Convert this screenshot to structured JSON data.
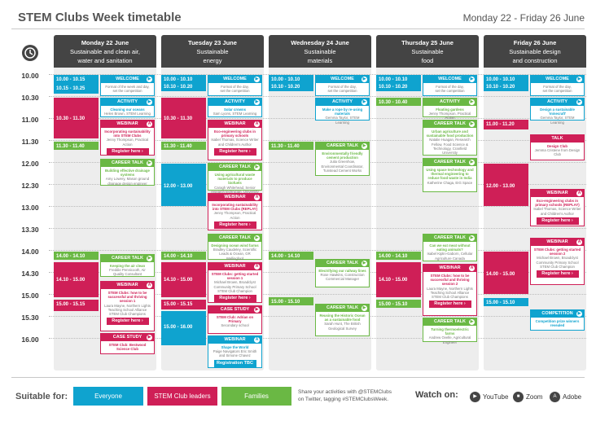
{
  "header": {
    "title": "STEM Clubs Week timetable",
    "dates": "Monday 22 - Friday 26 June"
  },
  "times": [
    "10.00",
    "10.30",
    "11.00",
    "11.30",
    "12.00",
    "12.30",
    "13.00",
    "13.30",
    "14.00",
    "14.30",
    "15.00",
    "15.30",
    "16.00"
  ],
  "days": [
    {
      "date": "Monday 22 June",
      "theme_line1": "Sustainable and clean air,",
      "theme_line2": "water and sanitation"
    },
    {
      "date": "Tuesday 23 June",
      "theme_line1": "Sustainable",
      "theme_line2": "energy"
    },
    {
      "date": "Wednesday 24 June",
      "theme_line1": "Sustainable",
      "theme_line2": "materials"
    },
    {
      "date": "Thursday 25 June",
      "theme_line1": "Sustainable",
      "theme_line2": "food"
    },
    {
      "date": "Friday 26 June",
      "theme_line1": "Sustainable design",
      "theme_line2": "and construction"
    }
  ],
  "slots": {
    "mon": [
      {
        "t1": "10.00 - 10.15",
        "t2": "10.15 - 10.25"
      },
      {
        "t1": "10.30 - 11.30"
      },
      {
        "t1": "11.30 - 11.40"
      },
      {
        "t1": "14.00 - 14.10"
      },
      {
        "t1": "14.10 - 15.00"
      },
      {
        "t1": "15.00 - 15.15"
      }
    ],
    "tue": [
      {
        "t1": "10.00 - 10.10",
        "t2": "10.10 - 10.20"
      },
      {
        "t1": "10.30 - 11.30"
      },
      {
        "t1": "11.30 - 11.40"
      },
      {
        "t1": "12.00 - 13.00"
      },
      {
        "t1": "14.00 - 14.10"
      },
      {
        "t1": "14.10 - 15.00"
      },
      {
        "t1": "15.00 - 15.15"
      },
      {
        "t1": "15.00 - 16.00"
      }
    ],
    "wed": [
      {
        "t1": "10.00 - 10.10",
        "t2": "10.10 - 10.20"
      },
      {
        "t1": "11.30 - 11.40"
      },
      {
        "t1": "14.00 - 14.10"
      },
      {
        "t1": "15.00 - 15.10"
      }
    ],
    "thu": [
      {
        "t1": "10.00 - 10.10",
        "t2": "10.10 - 10.20"
      },
      {
        "t1": "10.30 - 10.40"
      },
      {
        "t1": "14.00 - 14.10"
      },
      {
        "t1": "14.10 - 15.00"
      },
      {
        "t1": "15.00 - 15.10"
      }
    ],
    "fri": [
      {
        "t1": "10.00 - 10.10",
        "t2": "10.10 - 10.20"
      },
      {
        "t1": "11.00 - 11.20"
      },
      {
        "t1": "12.00 - 13.00"
      },
      {
        "t1": "14.00 - 15.00"
      },
      {
        "t1": "15.00 - 15.10"
      }
    ]
  },
  "events": {
    "mon": [
      {
        "label": "WELCOME",
        "s": "Format of the week and day,",
        "o": "set the competition"
      },
      {
        "label": "ACTIVITY",
        "s": "Cleaning our oceans",
        "o": "Helen Brown, STEM Learning"
      },
      {
        "label": "WEBINAR",
        "s": "Incorporating sustainability into STEM Clubs",
        "o": "Jenny Thompson, Practical Action",
        "btn": "Register here ›"
      },
      {
        "label": "CAREER TALK",
        "s": "Building effective drainage systems",
        "o": "Amy Lowery, Mason ground drainage design engineer"
      },
      {
        "label": "CAREER TALK",
        "s": "Keeping the air clean",
        "o": "Freddie Pennicooth, Air Quality Consultant"
      },
      {
        "label": "WEBINAR",
        "s": "STEM Clubs: how to be successful and thriving session 1",
        "o": "Laura Mayne, Northern Lights Teaching School Alliance STEM Club Champions",
        "btn": "Register here ›"
      },
      {
        "label": "CASE STUDY",
        "s": "STEM Club: Bestwood Science Club",
        "o": ""
      }
    ],
    "tue": [
      {
        "label": "WELCOME",
        "s": "Format of the day,",
        "o": "set the competition"
      },
      {
        "label": "ACTIVITY",
        "s": "Solar crowns",
        "o": "Sam Lyons, STEM Learning"
      },
      {
        "label": "WEBINAR",
        "s": "Eco-engineering clubs in primary schools",
        "o": "Isabel Thomas, Science Writer and Children's Author",
        "btn": "Register here ›"
      },
      {
        "label": "CAREER TALK",
        "s": "Using agricultural waste materials to produce biofuels",
        "o": "Caragh Whitehead, Senior research technician, University of York"
      },
      {
        "label": "WEBINAR",
        "s": "Incorporating sustainability into STEM Clubs (REPLAY)",
        "o": "Jenny Thompson, Practical Action",
        "btn": "Register here ›"
      },
      {
        "label": "CAREER TALK",
        "s": "Designing ocean wind farms",
        "o": "Bradley Caudeley, Scientific Leads & Ocean, GR Wallingford"
      },
      {
        "label": "WEBINAR",
        "s": "STEM Clubs: getting started session 1",
        "o": "Michael Brown, Broadclyst Community Primary School STEM Club Champion",
        "btn": "Register here ›"
      },
      {
        "label": "CASE STUDY",
        "s": "STEM Club: Adrian on Primary",
        "o": "Secondary school"
      },
      {
        "label": "WEBINAR",
        "s": "Shape the World",
        "o": "Paige Navigators Eric Smith and Simone Chavez",
        "btn": "Registration TBC"
      }
    ],
    "wed": [
      {
        "label": "WELCOME",
        "s": "Format of the day,",
        "o": "set the competition"
      },
      {
        "label": "ACTIVITY",
        "s": "Make a rope by re-using materials",
        "o": "Gemma Taylor, STEM Learning"
      },
      {
        "label": "CAREER TALK",
        "s": "Environmentally friendly cement production",
        "o": "Julia Greenhow, Environmental Coordinator, Tunstead Cement Works"
      },
      {
        "label": "CAREER TALK",
        "s": "Electrifying our railway lines",
        "o": "Rose Hawkins, Construction Commercial Manager"
      },
      {
        "label": "CAREER TALK",
        "s": "Reusing the Historic Ocean as a sustainable food",
        "o": "Sarah Hunt, The British Geological Survey"
      }
    ],
    "thu": [
      {
        "label": "WELCOME",
        "s": "Format of the day,",
        "o": "set the competition"
      },
      {
        "label": "ACTIVITY",
        "s": "Floating gardens",
        "o": "Jenny Thompson, Practical Action"
      },
      {
        "label": "CAREER TALK",
        "s": "Urban agriculture and sustainable food production",
        "o": "Natalie Huagan, Research Fellow, Food Science & Technology, Cranfield University"
      },
      {
        "label": "CAREER TALK",
        "s": "Using space technology and thermal engineering to reduce food waste in India",
        "o": "Katherine Chaga, EIG Space"
      },
      {
        "label": "CAREER TALK",
        "s": "Can we eat meat without eating animals?",
        "o": "Isabel Kiplin-Gaborn, Cellular Agriculture Canada"
      },
      {
        "label": "WEBINAR",
        "s": "STEM Clubs: how to be successful and thriving session 2",
        "o": "Laura Mayne, Northern Lights Teaching School Alliance STEM Club Champions",
        "btn": "Register here ›"
      },
      {
        "label": "CAREER TALK",
        "s": "Turning thermoelectric farms",
        "o": "Andrew Ovelle, Agricultural Engineer"
      }
    ],
    "fri": [
      {
        "label": "WELCOME",
        "s": "Format of the day,",
        "o": "set the competition"
      },
      {
        "label": "ACTIVITY",
        "s": "Design a sustainable 'minecraft'",
        "o": "Gemma Taylor, STEM Learning"
      },
      {
        "label": "TALK",
        "s": "Design Club",
        "o": "Jemma Cristene from Design Club"
      },
      {
        "label": "WEBINAR",
        "s": "Eco-engineering clubs in primary schools (REPLAY)",
        "o": "Isabel Thomas, Science Writer and Children's Author",
        "btn": "Register here ›"
      },
      {
        "label": "WEBINAR",
        "s": "STEM Clubs: getting started session 2",
        "o": "Michael Brown, Broadclyst Community Primary School STEM Club Champion",
        "btn": "Register here ›"
      },
      {
        "label": "COMPETITION",
        "s": "Competition prize winners revealed",
        "o": ""
      }
    ]
  },
  "footer": {
    "suitable_label": "Suitable for:",
    "pills": [
      "Everyone",
      "STEM Club leaders",
      "Families"
    ],
    "share_line1": "Share your activities with @STEMClubs",
    "share_line2": "on Twitter, tagging #STEMClubsWeek.",
    "watch_label": "Watch on:",
    "platforms": [
      "YouTube",
      "Zoom",
      "Adobe"
    ]
  },
  "colors": {
    "everyone": "#0fa3cf",
    "leaders": "#cf1f57",
    "families": "#6ab844",
    "header": "#444444"
  }
}
